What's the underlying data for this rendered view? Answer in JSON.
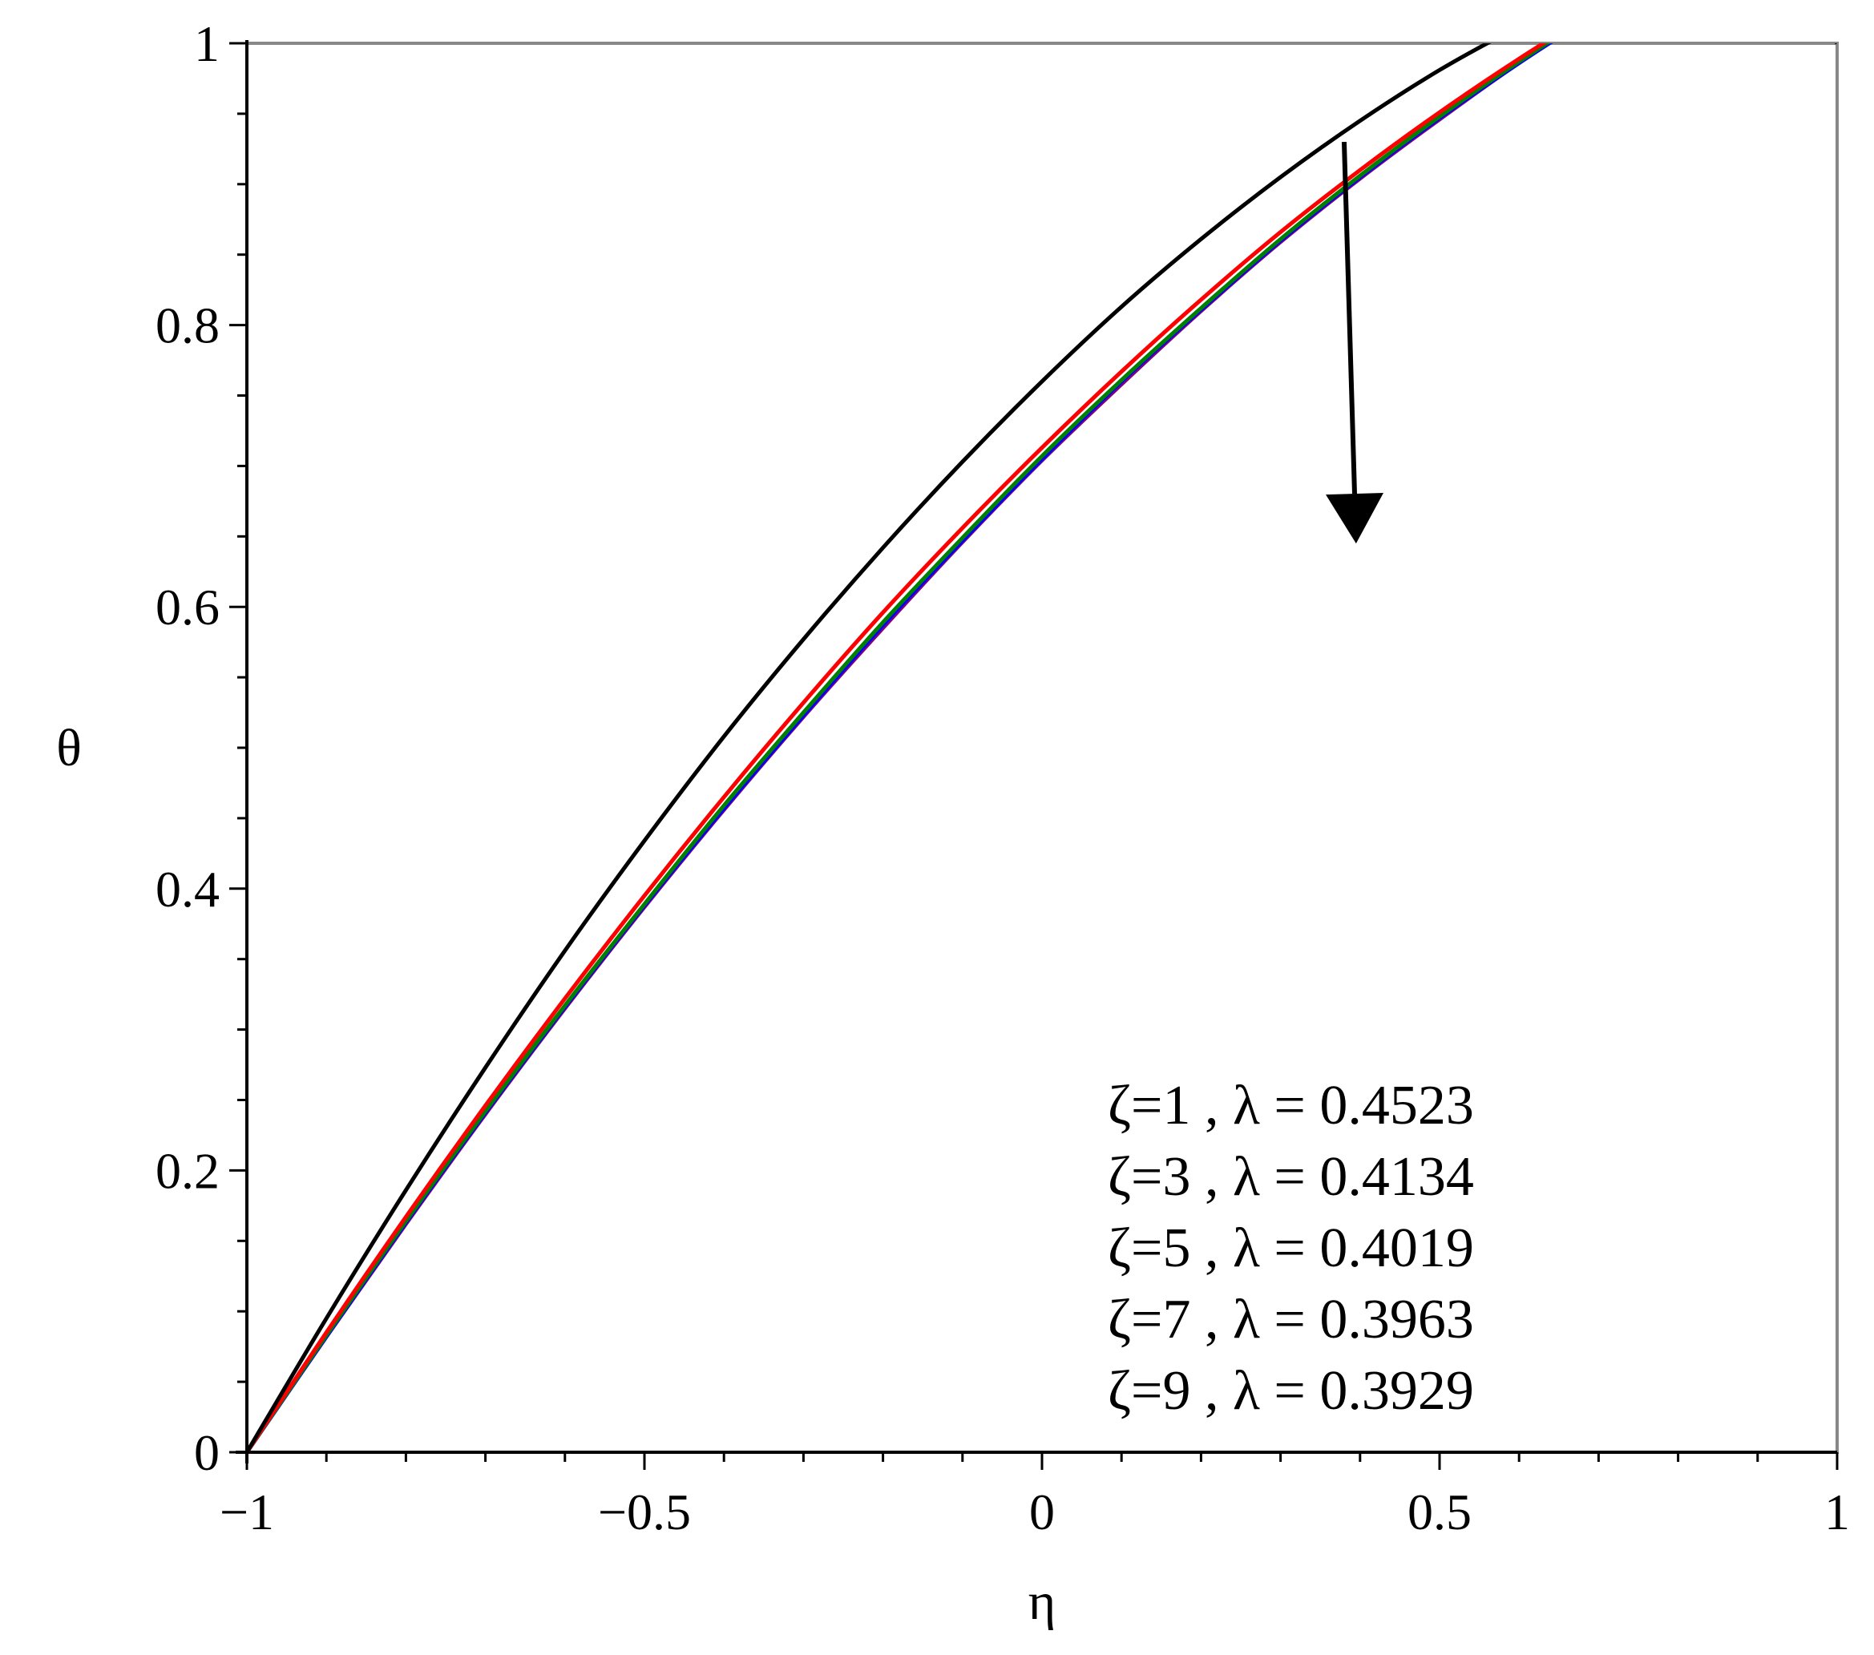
{
  "chart_data": {
    "type": "line",
    "title": "",
    "xlabel": "η",
    "ylabel": "θ",
    "xlim": [
      -1,
      1
    ],
    "ylim": [
      0,
      1
    ],
    "x_ticks": [
      {
        "value": -1,
        "label": "−1"
      },
      {
        "value": -0.5,
        "label": "−0.5"
      },
      {
        "value": 0,
        "label": "0"
      },
      {
        "value": 0.5,
        "label": "0.5"
      },
      {
        "value": 1,
        "label": "1"
      }
    ],
    "y_ticks": [
      {
        "value": 0,
        "label": "0"
      },
      {
        "value": 0.2,
        "label": "0.2"
      },
      {
        "value": 0.4,
        "label": "0.4"
      },
      {
        "value": 0.6,
        "label": "0.6"
      },
      {
        "value": 0.8,
        "label": "0.8"
      },
      {
        "value": 1,
        "label": "1"
      }
    ],
    "x_minor_step": 0.1,
    "y_minor_step": 0.05,
    "grid": false,
    "legend": {
      "placement": "bottom-right",
      "entries": [
        "ζ=1  , λ = 0.4523",
        "ζ=3  , λ = 0.4134",
        "ζ=5  , λ = 0.4019",
        "ζ=7  , λ = 0.3963",
        "ζ=9  , λ = 0.3929"
      ]
    },
    "annotation": {
      "type": "arrow",
      "meaning": "θ decreases as ζ increases",
      "from": {
        "x": 0.38,
        "y": 0.93
      },
      "to": {
        "x": 0.395,
        "y": 0.645
      }
    },
    "x": [
      -1,
      -0.9,
      -0.8,
      -0.7,
      -0.6,
      -0.5,
      -0.4,
      -0.3,
      -0.2,
      -0.1,
      0,
      0.1,
      0.2,
      0.3,
      0.4,
      0.5,
      0.6,
      0.7,
      0.8,
      0.9,
      1
    ],
    "series": [
      {
        "color": "#000000",
        "values": [
          0,
          0.095,
          0.186,
          0.273,
          0.356,
          0.434,
          0.508,
          0.577,
          0.642,
          0.703,
          0.76,
          0.813,
          0.861,
          0.905,
          0.945,
          0.981,
          1.012,
          1.04,
          1.063,
          1.083,
          1
        ]
      },
      {
        "color": "#ff0000",
        "values": [
          0,
          0.085,
          0.167,
          0.246,
          0.322,
          0.395,
          0.465,
          0.532,
          0.596,
          0.656,
          0.713,
          0.767,
          0.818,
          0.866,
          0.91,
          0.951,
          0.989,
          1.024,
          1.055,
          1.083,
          1
        ]
      },
      {
        "color": "#008000",
        "values": [
          0,
          0.083,
          0.164,
          0.242,
          0.317,
          0.389,
          0.459,
          0.525,
          0.589,
          0.649,
          0.707,
          0.761,
          0.812,
          0.861,
          0.906,
          0.948,
          0.987,
          1.023,
          1.055,
          1.084,
          1
        ]
      },
      {
        "color": "#0000ff",
        "values": [
          0,
          0.082,
          0.163,
          0.241,
          0.316,
          0.388,
          0.457,
          0.523,
          0.587,
          0.647,
          0.705,
          0.76,
          0.811,
          0.86,
          0.905,
          0.947,
          0.986,
          1.022,
          1.055,
          1.084,
          1
        ]
      },
      {
        "color": "#800080",
        "values": [
          0,
          0.082,
          0.162,
          0.24,
          0.315,
          0.387,
          0.456,
          0.522,
          0.585,
          0.646,
          0.704,
          0.758,
          0.81,
          0.859,
          0.904,
          0.946,
          0.986,
          1.022,
          1.055,
          1.084,
          1
        ]
      }
    ]
  }
}
